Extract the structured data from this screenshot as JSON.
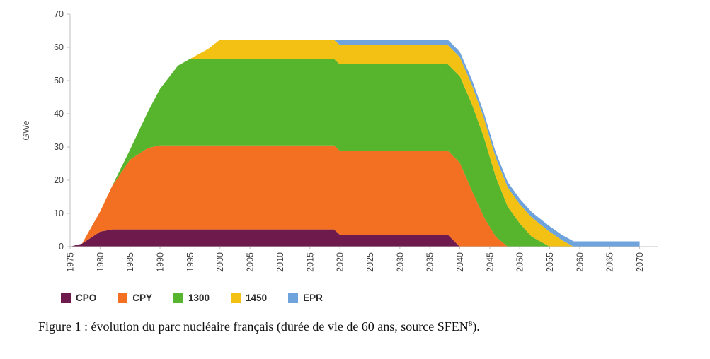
{
  "chart_data": {
    "type": "area",
    "stacked": true,
    "title": "",
    "xlabel": "",
    "ylabel": "GWe",
    "ylim": [
      0,
      70
    ],
    "xlim": [
      1975,
      2073
    ],
    "yticks": [
      0,
      10,
      20,
      30,
      40,
      50,
      60,
      70
    ],
    "xticks": [
      1975,
      1980,
      1985,
      1990,
      1995,
      2000,
      2005,
      2010,
      2015,
      2020,
      2025,
      2030,
      2035,
      2040,
      2045,
      2050,
      2055,
      2060,
      2065,
      2070
    ],
    "grid": false,
    "legend_position": "bottom",
    "x": [
      1975,
      1977,
      1980,
      1982,
      1985,
      1988,
      1990,
      1993,
      1995,
      1998,
      2000,
      2005,
      2010,
      2015,
      2019,
      2020,
      2025,
      2030,
      2035,
      2038,
      2040,
      2042,
      2044,
      2046,
      2048,
      2050,
      2052,
      2055,
      2057,
      2059,
      2060,
      2065,
      2070
    ],
    "series": [
      {
        "name": "CPO",
        "color": "#6e1a4d",
        "values": [
          0,
          0.9,
          4.5,
          5.2,
          5.2,
          5.2,
          5.2,
          5.2,
          5.2,
          5.2,
          5.2,
          5.2,
          5.2,
          5.2,
          5.2,
          3.6,
          3.6,
          3.6,
          3.6,
          3.6,
          0,
          0,
          0,
          0,
          0,
          0,
          0,
          0,
          0,
          0,
          0,
          0,
          0
        ]
      },
      {
        "name": "CPY",
        "color": "#f36f21",
        "values": [
          0,
          0,
          6,
          13,
          21,
          24.5,
          25.3,
          25.3,
          25.3,
          25.3,
          25.3,
          25.3,
          25.3,
          25.3,
          25.3,
          25.3,
          25.3,
          25.3,
          25.3,
          25.3,
          25.3,
          17,
          9,
          3,
          0,
          0,
          0,
          0,
          0,
          0,
          0,
          0,
          0
        ]
      },
      {
        "name": "1300",
        "color": "#56b52c",
        "values": [
          0,
          0,
          0,
          0,
          3,
          11,
          17,
          24,
          26,
          26,
          26,
          26,
          26,
          26,
          26,
          26,
          26,
          26,
          26,
          26,
          26,
          26,
          24,
          18,
          12,
          7,
          3,
          0,
          0,
          0,
          0,
          0,
          0
        ]
      },
      {
        "name": "1450",
        "color": "#f2c114",
        "values": [
          0,
          0,
          0,
          0,
          0,
          0,
          0,
          0,
          0,
          3,
          5.8,
          5.8,
          5.8,
          5.8,
          5.8,
          5.8,
          5.8,
          5.8,
          5.8,
          5.8,
          5.8,
          5.8,
          5.8,
          5.8,
          5.8,
          5.8,
          5.8,
          4.5,
          2,
          0,
          0,
          0,
          0
        ]
      },
      {
        "name": "EPR",
        "color": "#6fa3dc",
        "values": [
          0,
          0,
          0,
          0,
          0,
          0,
          0,
          0,
          0,
          0,
          0,
          0,
          0,
          0,
          0,
          1.6,
          1.6,
          1.6,
          1.6,
          1.6,
          1.6,
          1.6,
          1.6,
          1.6,
          1.6,
          1.6,
          1.6,
          1.6,
          1.6,
          1.6,
          1.6,
          1.6,
          1.6
        ]
      }
    ]
  },
  "axis": {
    "color": "#bfbfbf",
    "tick_label_color": "#404040",
    "ylabel_color": "#555555"
  },
  "caption": {
    "text": "Figure 1 : évolution du parc nucléaire français (durée de vie de 60 ans, source SFEN",
    "superscript": "8",
    "suffix": ")."
  }
}
